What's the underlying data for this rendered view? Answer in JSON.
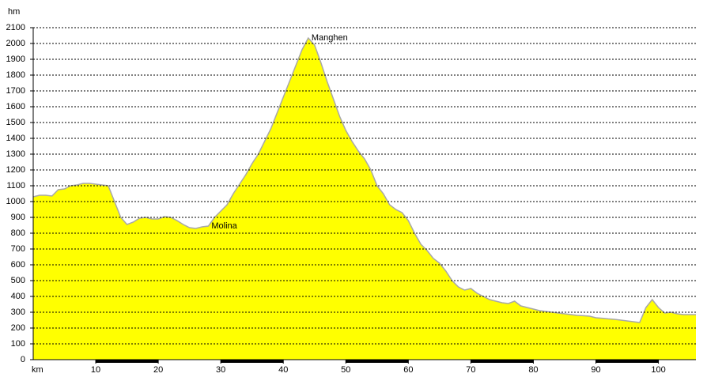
{
  "chart_data": {
    "type": "area",
    "y_label": "hm",
    "x_label": "km",
    "x": [
      0,
      1,
      2,
      3,
      4,
      5,
      6,
      7,
      8,
      9,
      10,
      11,
      12,
      13,
      14,
      15,
      16,
      17,
      18,
      19,
      20,
      21,
      22,
      23,
      24,
      25,
      26,
      27,
      28,
      29,
      30,
      31,
      32,
      33,
      34,
      35,
      36,
      37,
      38,
      39,
      40,
      41,
      42,
      43,
      44,
      45,
      46,
      47,
      48,
      49,
      50,
      51,
      52,
      53,
      54,
      55,
      56,
      57,
      58,
      59,
      60,
      61,
      62,
      63,
      64,
      65,
      66,
      67,
      68,
      69,
      70,
      71,
      72,
      73,
      74,
      75,
      76,
      77,
      78,
      79,
      80,
      81,
      82,
      83,
      84,
      85,
      86,
      87,
      88,
      89,
      90,
      91,
      92,
      93,
      94,
      95,
      96,
      97,
      98,
      99,
      100,
      101,
      102,
      103,
      104,
      105,
      106
    ],
    "values": [
      1030,
      1040,
      1040,
      1035,
      1075,
      1080,
      1100,
      1105,
      1115,
      1115,
      1110,
      1105,
      1100,
      1000,
      900,
      855,
      870,
      895,
      900,
      890,
      890,
      905,
      900,
      880,
      855,
      835,
      830,
      840,
      845,
      900,
      940,
      980,
      1050,
      1110,
      1170,
      1240,
      1300,
      1380,
      1460,
      1560,
      1660,
      1760,
      1860,
      1960,
      2035,
      1990,
      1880,
      1760,
      1650,
      1540,
      1450,
      1380,
      1320,
      1270,
      1200,
      1100,
      1050,
      980,
      950,
      930,
      880,
      800,
      730,
      690,
      640,
      610,
      560,
      500,
      460,
      440,
      450,
      420,
      400,
      380,
      370,
      360,
      355,
      370,
      340,
      330,
      320,
      310,
      305,
      300,
      295,
      290,
      285,
      280,
      278,
      275,
      265,
      262,
      258,
      255,
      250,
      245,
      240,
      235,
      330,
      380,
      330,
      295,
      300,
      290,
      285,
      285,
      285
    ],
    "color": "#ffff00",
    "line_color": "#a8a8a8",
    "annotations": [
      {
        "text": "Manghen",
        "x": 44,
        "y": 2035
      },
      {
        "text": "Molina",
        "x": 28,
        "y": 845
      }
    ],
    "xlim": [
      0,
      106
    ],
    "ylim": [
      0,
      2100
    ],
    "xticks": [
      10,
      20,
      30,
      40,
      50,
      60,
      70,
      80,
      90,
      100
    ],
    "yticks": [
      0,
      100,
      200,
      300,
      400,
      500,
      600,
      700,
      800,
      900,
      1000,
      1100,
      1200,
      1300,
      1400,
      1500,
      1600,
      1700,
      1800,
      1900,
      2000,
      2100
    ],
    "grid": true
  }
}
